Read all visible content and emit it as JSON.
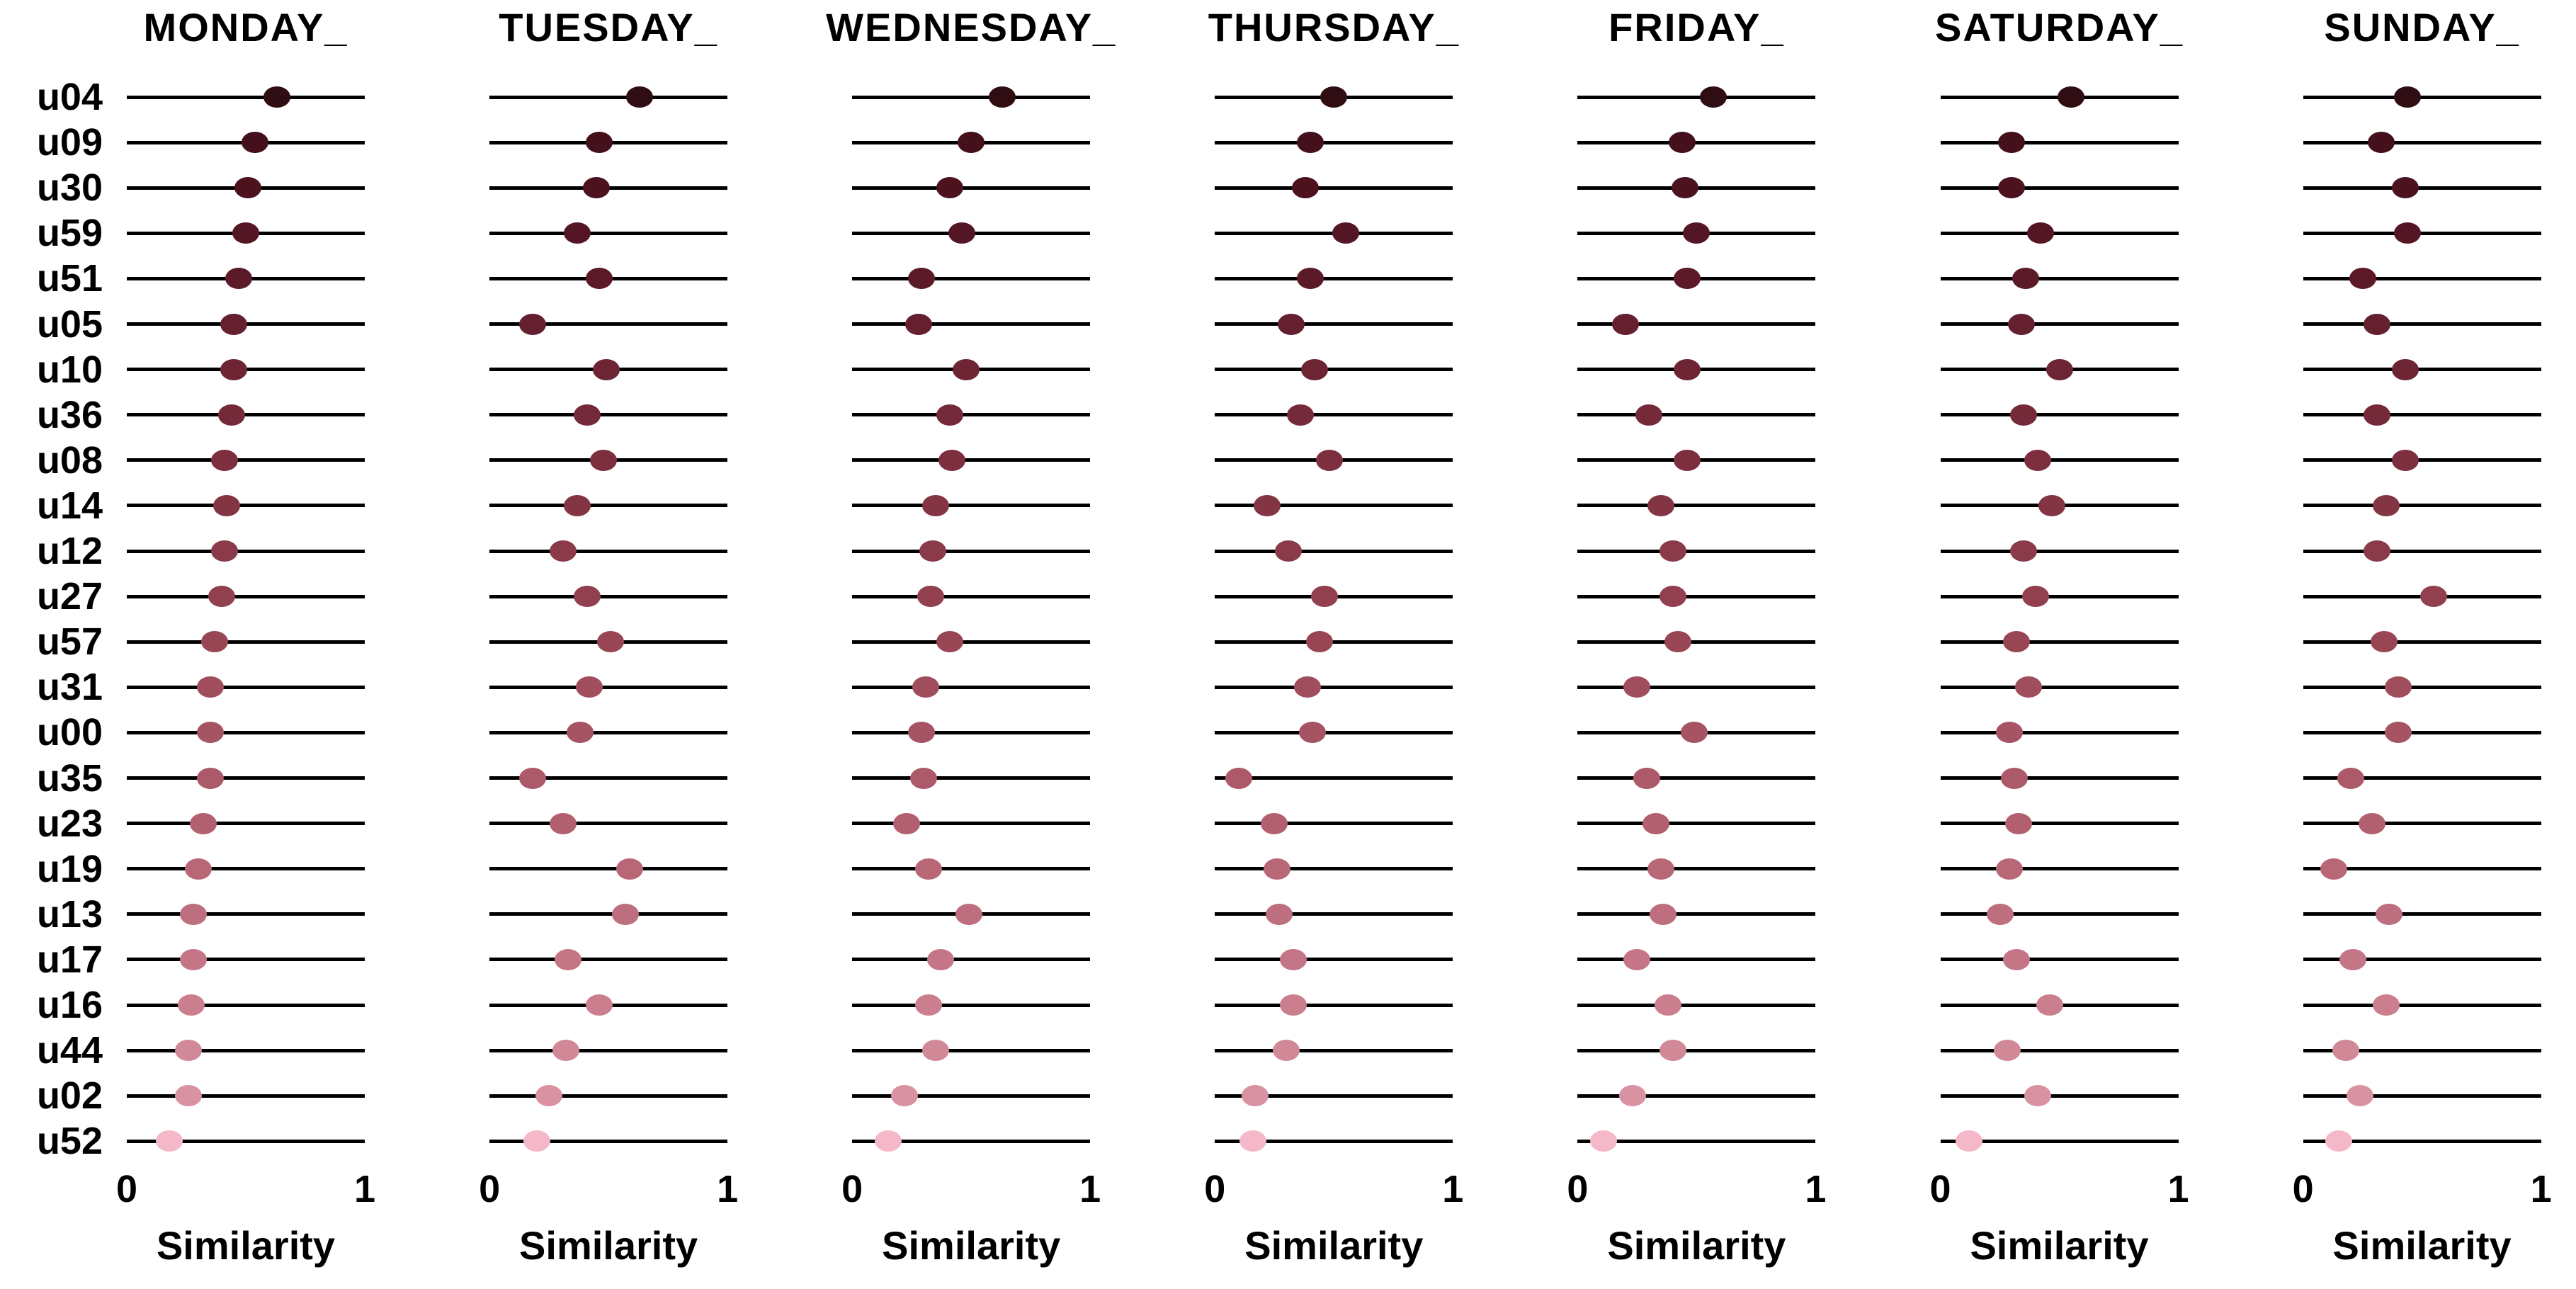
{
  "chart_data": {
    "type": "scatter",
    "subtype": "dot-plot-small-multiples",
    "title": "",
    "xlabel": "Similarity",
    "xlim": [
      0,
      1
    ],
    "x_ticks": [
      "0",
      "1"
    ],
    "grid": "off",
    "legend": "none",
    "rows": [
      "u04",
      "u09",
      "u30",
      "u59",
      "u51",
      "u05",
      "u10",
      "u36",
      "u08",
      "u14",
      "u12",
      "u27",
      "u57",
      "u31",
      "u00",
      "u35",
      "u23",
      "u19",
      "u13",
      "u17",
      "u16",
      "u44",
      "u02",
      "u52"
    ],
    "row_colors": [
      "#300d13",
      "#43101b",
      "#4c131f",
      "#541624",
      "#5c1a29",
      "#65202f",
      "#6d2534",
      "#752a3a",
      "#7d2f40",
      "#843544",
      "#8b3a49",
      "#92404f",
      "#994654",
      "#a04d5c",
      "#a65363",
      "#ac5969",
      "#b26070",
      "#b86777",
      "#be6f7f",
      "#c47686",
      "#ca7e8e",
      "#d18897",
      "#d992a1",
      "#f5b8c8"
    ],
    "panels": [
      {
        "title": "MONDAY_",
        "values": [
          0.63,
          0.54,
          0.51,
          0.5,
          0.47,
          0.45,
          0.45,
          0.44,
          0.41,
          0.42,
          0.41,
          0.4,
          0.37,
          0.35,
          0.35,
          0.35,
          0.32,
          0.3,
          0.28,
          0.28,
          0.27,
          0.26,
          0.26,
          0.18
        ]
      },
      {
        "title": "TUESDAY_",
        "values": [
          0.63,
          0.46,
          0.45,
          0.37,
          0.46,
          0.18,
          0.49,
          0.41,
          0.48,
          0.37,
          0.31,
          0.41,
          0.51,
          0.42,
          0.38,
          0.18,
          0.31,
          0.59,
          0.57,
          0.33,
          0.46,
          0.32,
          0.25,
          0.2
        ]
      },
      {
        "title": "WEDNESDAY_",
        "values": [
          0.63,
          0.5,
          0.41,
          0.46,
          0.29,
          0.28,
          0.48,
          0.41,
          0.42,
          0.35,
          0.34,
          0.33,
          0.41,
          0.31,
          0.29,
          0.3,
          0.23,
          0.32,
          0.49,
          0.37,
          0.32,
          0.35,
          0.22,
          0.15
        ]
      },
      {
        "title": "THURSDAY_",
        "values": [
          0.5,
          0.4,
          0.38,
          0.55,
          0.4,
          0.32,
          0.42,
          0.36,
          0.48,
          0.22,
          0.31,
          0.46,
          0.44,
          0.39,
          0.41,
          0.1,
          0.25,
          0.26,
          0.27,
          0.33,
          0.33,
          0.3,
          0.17,
          0.16
        ]
      },
      {
        "title": "FRIDAY_",
        "values": [
          0.57,
          0.44,
          0.45,
          0.5,
          0.46,
          0.2,
          0.46,
          0.3,
          0.46,
          0.35,
          0.4,
          0.4,
          0.42,
          0.25,
          0.49,
          0.29,
          0.33,
          0.35,
          0.36,
          0.25,
          0.38,
          0.4,
          0.23,
          0.11
        ]
      },
      {
        "title": "SATURDAY_",
        "values": [
          0.55,
          0.3,
          0.3,
          0.42,
          0.36,
          0.34,
          0.5,
          0.35,
          0.41,
          0.47,
          0.35,
          0.4,
          0.32,
          0.37,
          0.29,
          0.31,
          0.33,
          0.29,
          0.25,
          0.32,
          0.46,
          0.28,
          0.41,
          0.12
        ]
      },
      {
        "title": "SUNDAY_",
        "values": [
          0.44,
          0.33,
          0.43,
          0.44,
          0.25,
          0.31,
          0.43,
          0.31,
          0.43,
          0.35,
          0.31,
          0.55,
          0.34,
          0.4,
          0.4,
          0.2,
          0.29,
          0.13,
          0.36,
          0.21,
          0.35,
          0.18,
          0.24,
          0.15
        ]
      }
    ]
  },
  "colors": {
    "background": "#ffffff",
    "axis_line": "#000000",
    "text": "#000000"
  }
}
